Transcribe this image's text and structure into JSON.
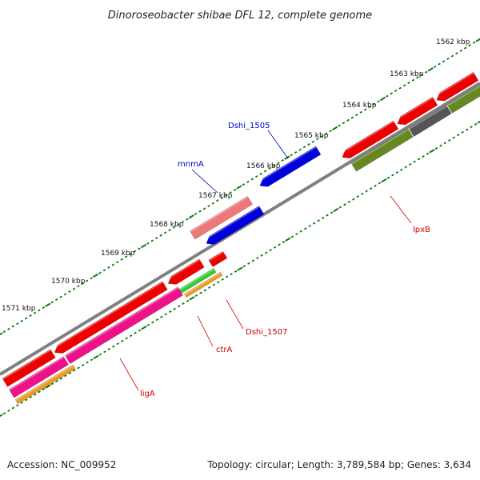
{
  "title": "Dinoroseobacter shibae DFL 12, complete genome",
  "accession": "Accession: NC_009952",
  "topology": "Topology: circular; Length: 3,789,584 bp; Genes: 3,634",
  "colors": {
    "backbone": "#808080",
    "tick": "#117711",
    "gene_red": "#ee0000",
    "gene_blue": "#0000dd",
    "gene_pink": "#ee7777",
    "gene_magenta": "#ee1188",
    "gene_orange": "#ee9922",
    "gene_green": "#33cc33",
    "gene_olive": "#668822",
    "gene_gray": "#555555",
    "label_red": "#cc0000",
    "label_blue": "#0000cc"
  },
  "kbp_labels": [
    "1562 kbp",
    "1563 kbp",
    "1564 kbp",
    "1565 kbp",
    "1566 kbp",
    "1567 kbp",
    "1568 kbp",
    "1569 kbp",
    "1570 kbp",
    "1571 kbp"
  ],
  "gene_labels": [
    {
      "name": "Dshi_1505",
      "color": "blue"
    },
    {
      "name": "mnmA",
      "color": "blue"
    },
    {
      "name": "lpxB",
      "color": "red"
    },
    {
      "name": "Dshi_1507",
      "color": "red"
    },
    {
      "name": "ctrA",
      "color": "red"
    },
    {
      "name": "ligA",
      "color": "red"
    }
  ]
}
